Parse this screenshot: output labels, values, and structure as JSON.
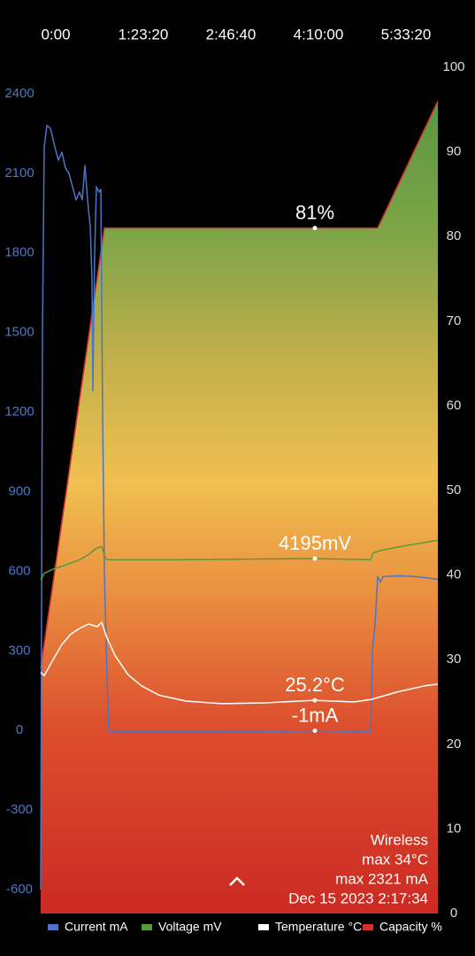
{
  "chart_data": {
    "type": "line",
    "xlim": [
      -859,
      21818
    ],
    "xticks": [
      {
        "value": 0,
        "label": "0:00"
      },
      {
        "value": 5000,
        "label": "1:23:20"
      },
      {
        "value": 10000,
        "label": "2:46:40"
      },
      {
        "value": 15000,
        "label": "4:10:00"
      },
      {
        "value": 20000,
        "label": "5:33:20"
      }
    ],
    "ylim": [
      -690,
      2500
    ],
    "yticks": [
      -600,
      -300,
      0,
      300,
      600,
      900,
      1200,
      1500,
      1800,
      2100,
      2400
    ],
    "y2lim": [
      0,
      100
    ],
    "y2ticks": [
      0,
      10,
      20,
      30,
      40,
      50,
      60,
      70,
      80,
      90,
      100
    ],
    "yticks_color": "#4a78c8",
    "series": [
      {
        "name": "Capacity %",
        "color": "#d2302a",
        "axis": "y2",
        "fill": true,
        "x": [
          -859,
          2778,
          14798,
          18384,
          21818
        ],
        "values": [
          29,
          81,
          81,
          81,
          96
        ],
        "value_labels": [
          null,
          null,
          "81%",
          null,
          null
        ]
      },
      {
        "name": "Current mA",
        "color": "#4d74c4",
        "axis": "y",
        "x": [
          -859,
          -758,
          -657,
          -505,
          -303,
          -51,
          152,
          354,
          556,
          758,
          960,
          1162,
          1364,
          1515,
          1667,
          1818,
          1970,
          2071,
          2121,
          2222,
          2323,
          2475,
          2576,
          2677,
          2778,
          2929,
          3030,
          3131,
          6919,
          11970,
          14798,
          17980,
          18081,
          18232,
          18384,
          18535,
          18687,
          19545,
          20555,
          21818
        ],
        "values": [
          -600,
          1500,
          2200,
          2280,
          2270,
          2200,
          2150,
          2180,
          2120,
          2100,
          2050,
          2000,
          2030,
          2000,
          2130,
          2000,
          1900,
          1700,
          1280,
          1800,
          2050,
          2030,
          2040,
          1200,
          600,
          200,
          0,
          -5,
          -5,
          -5,
          -1,
          -5,
          300,
          400,
          580,
          560,
          580,
          583,
          580,
          570
        ],
        "value_labels": [
          null,
          null,
          null,
          null,
          null,
          null,
          null,
          null,
          null,
          null,
          null,
          null,
          null,
          null,
          null,
          null,
          null,
          null,
          null,
          null,
          null,
          null,
          null,
          null,
          null,
          null,
          null,
          null,
          null,
          null,
          "-1mA",
          null,
          null,
          null,
          null,
          null,
          null,
          null,
          null,
          null
        ]
      },
      {
        "name": "Voltage mV",
        "color": "#5b9a3c",
        "axis": "y2",
        "x": [
          -859,
          -657,
          -152,
          606,
          1364,
          1869,
          2273,
          2626,
          2778,
          2929,
          6919,
          14798,
          17980,
          18131,
          18535,
          20050,
          21818
        ],
        "values": [
          39.4,
          40.2,
          40.7,
          41.2,
          41.8,
          42.4,
          43.1,
          43.4,
          42.3,
          41.8,
          41.8,
          41.95,
          41.8,
          42.6,
          42.9,
          43.5,
          44.1
        ],
        "value_labels": [
          null,
          null,
          null,
          null,
          null,
          null,
          null,
          null,
          null,
          null,
          null,
          "4195mV",
          null,
          null,
          null,
          null,
          null
        ]
      },
      {
        "name": "Temperature °C",
        "color": "#ffffff",
        "axis": "y2",
        "x": [
          -859,
          -657,
          -152,
          354,
          859,
          1364,
          1869,
          2374,
          2626,
          2879,
          3384,
          4141,
          4899,
          5909,
          7424,
          9444,
          11970,
          14798,
          17020,
          18030,
          19545,
          21060,
          21818
        ],
        "values": [
          28.5,
          28.1,
          30.0,
          31.8,
          33.0,
          33.7,
          34.2,
          33.9,
          34.4,
          32.8,
          30.5,
          28.2,
          26.9,
          25.8,
          25.1,
          24.8,
          24.9,
          25.2,
          25.0,
          25.3,
          26.2,
          26.9,
          27.1
        ],
        "value_labels": [
          null,
          null,
          null,
          null,
          null,
          null,
          null,
          null,
          null,
          null,
          null,
          null,
          null,
          null,
          null,
          null,
          null,
          "25.2°C",
          null,
          null,
          null,
          null,
          null
        ]
      }
    ],
    "annotations": [
      "Wireless",
      "max 34°C",
      "max 2321 mA",
      "Dec 15 2023 2:17:34"
    ]
  }
}
